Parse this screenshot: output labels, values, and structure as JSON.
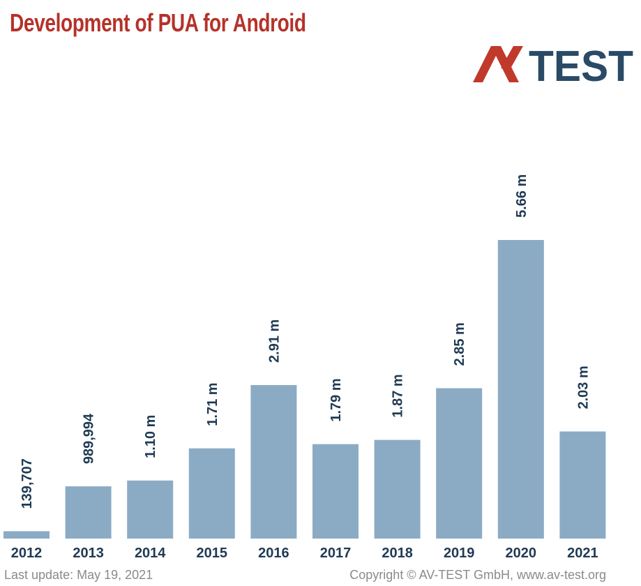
{
  "colors": {
    "title": "#b5322a",
    "bar": "#8babc5",
    "label": "#1f3a54",
    "logo_red": "#c0392b",
    "logo_blue": "#2a4a66"
  },
  "logo": {
    "text": "AV-TEST",
    "icon": "av-test-logo"
  },
  "footer": {
    "left": "Last update: May 19, 2021",
    "right": "Copyright © AV-TEST GmbH, www.av-test.org"
  },
  "chart_data": {
    "type": "bar",
    "title": "Development of PUA for Android",
    "categories": [
      "2012",
      "2013",
      "2014",
      "2015",
      "2016",
      "2017",
      "2018",
      "2019",
      "2020",
      "2021"
    ],
    "values": [
      139707,
      989994,
      1100000,
      1710000,
      2910000,
      1790000,
      1870000,
      2850000,
      5660000,
      2030000
    ],
    "data_labels": [
      "139,707",
      "989,994",
      "1.10 m",
      "1.71 m",
      "2.91 m",
      "1.79 m",
      "1.87 m",
      "2.85 m",
      "5.66 m",
      "2.03 m"
    ],
    "xlabel": "",
    "ylabel": "",
    "grid": false,
    "legend": "none"
  }
}
